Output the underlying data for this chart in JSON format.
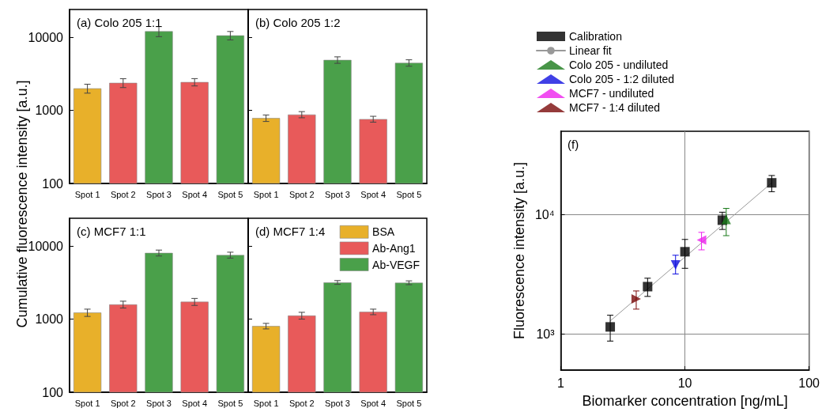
{
  "chart_data": [
    {
      "type": "bar",
      "title": "(a) Colo 205 1:1",
      "ylabel": "Cumulative fluorescence intensity [a.u.]",
      "categories": [
        "Spot 1",
        "Spot 2",
        "Spot 3",
        "Spot 4",
        "Spot 5"
      ],
      "values": [
        2000,
        2380,
        12100,
        2440,
        10600
      ],
      "colors": [
        "#e8b02a",
        "#e85a5a",
        "#4aa04a",
        "#e85a5a",
        "#4aa04a"
      ],
      "errors": [
        280,
        330,
        1900,
        280,
        1400
      ],
      "log": true,
      "ylim": [
        100,
        24000
      ],
      "yticks": [
        100,
        1000,
        10000
      ]
    },
    {
      "type": "bar",
      "title": "(b) Colo 205 1:2",
      "categories": [
        "Spot 1",
        "Spot 2",
        "Spot 3",
        "Spot 4",
        "Spot 5"
      ],
      "values": [
        785,
        877,
        4900,
        760,
        4470
      ],
      "colors": [
        "#e8b02a",
        "#e85a5a",
        "#4aa04a",
        "#e85a5a",
        "#4aa04a"
      ],
      "errors": [
        80,
        85,
        500,
        70,
        450
      ],
      "log": true,
      "ylim": [
        100,
        24000
      ],
      "yticks": [
        100,
        1000,
        10000
      ],
      "tick_labels": "x"
    },
    {
      "type": "bar",
      "title": "(c) MCF7 1:1",
      "categories": [
        "Spot 1",
        "Spot 2",
        "Spot 3",
        "Spot 4",
        "Spot 5"
      ],
      "values": [
        1230,
        1590,
        8060,
        1730,
        7540
      ],
      "colors": [
        "#e8b02a",
        "#e85a5a",
        "#4aa04a",
        "#e85a5a",
        "#4aa04a"
      ],
      "errors": [
        140,
        170,
        750,
        190,
        700
      ],
      "log": true,
      "ylim": [
        100,
        24000
      ],
      "yticks": [
        100,
        1000,
        10000
      ]
    },
    {
      "type": "bar",
      "title": "(d) MCF7 1:4",
      "categories": [
        "Spot 1",
        "Spot 2",
        "Spot 3",
        "Spot 4",
        "Spot 5"
      ],
      "series": [
        {
          "name": "BSA",
          "color": "#e8b02a",
          "values": [
            805,
            null,
            null,
            null,
            null
          ],
          "errors": [
            70,
            null,
            null,
            null,
            null
          ]
        },
        {
          "name": "Ab-Ang1",
          "color": "#e85a5a",
          "values": [
            null,
            1120,
            null,
            1260,
            null
          ],
          "errors": [
            null,
            120,
            null,
            110,
            null
          ]
        },
        {
          "name": "Ab-VEGF",
          "color": "#4aa04a",
          "values": [
            null,
            null,
            3180,
            null,
            3150
          ],
          "errors": [
            null,
            null,
            190,
            null,
            190
          ]
        }
      ],
      "legend": "top right",
      "log": true,
      "ylim": [
        100,
        24000
      ],
      "yticks": [
        100,
        1000,
        10000
      ],
      "tick_labels": "x"
    },
    {
      "type": "scatter",
      "title": "(f)",
      "xlabel": "Biomarker concentration [ng/mL]",
      "ylabel": "Fluorescence intensity [a.u.]",
      "series": [
        {
          "name": "Calibration",
          "color": "#000000",
          "marker": "square",
          "x": [
            2.5,
            5,
            10,
            20,
            50
          ],
          "values": [
            1150,
            2500,
            4900,
            9000,
            18500
          ],
          "errors": [
            [
              875,
              1440
            ],
            [
              2070,
              2940
            ],
            [
              3560,
              6210
            ],
            [
              7530,
              10500
            ],
            [
              15600,
              21300
            ]
          ]
        },
        {
          "name": "Linear fit",
          "type": "line",
          "color": "#999999",
          "marker": "none",
          "line_style": "solid",
          "x": [
            2.5,
            50
          ],
          "values": [
            1290,
            18500
          ]
        },
        {
          "name": "Colo 205 - undiluted",
          "color": "#1a7a1a",
          "marker": "triangle",
          "x": [
            21.5
          ],
          "values": [
            9140
          ],
          "errors": [
            [
              6680,
              11300
            ]
          ]
        },
        {
          "name": "Colo 205 - 1:2 diluted",
          "color": "#1010e0",
          "marker": "triangle-down",
          "x": [
            8.4
          ],
          "values": [
            3800
          ],
          "errors": [
            [
              3190,
              4580
            ]
          ]
        },
        {
          "name": "MCF7 - undiluted",
          "color": "#ee22ee",
          "marker": "triangle-left",
          "x": [
            13.6
          ],
          "values": [
            6140
          ],
          "errors": [
            [
              5080,
              7120
            ]
          ]
        },
        {
          "name": "MCF7 - 1:4 diluted",
          "color": "#7a0a0a",
          "marker": "triangle-right",
          "x": [
            4.05
          ],
          "values": [
            1970
          ],
          "errors": [
            [
              1620,
              2300
            ]
          ]
        }
      ],
      "legend": "top",
      "log": "xy",
      "grid": true,
      "xlim": [
        1,
        100
      ],
      "xticks": [
        1,
        10,
        100
      ],
      "ylim": [
        500,
        50000
      ],
      "yticks": [
        {
          "value": 1000,
          "label": "10³"
        },
        {
          "value": 10000,
          "label": "10⁴"
        }
      ]
    }
  ]
}
